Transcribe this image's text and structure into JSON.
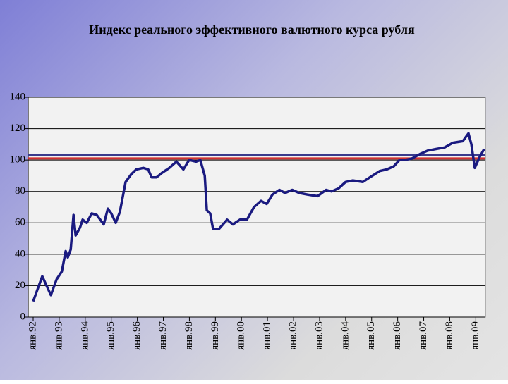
{
  "chart_data": {
    "type": "line",
    "title": "Индекс реального эффективного валютного курса рубля",
    "x": [
      1992.0,
      1992.35,
      1992.68,
      1992.9,
      1993.1,
      1993.25,
      1993.33,
      1993.44,
      1993.55,
      1993.63,
      1993.8,
      1993.9,
      1994.06,
      1994.25,
      1994.44,
      1994.71,
      1994.87,
      1995.0,
      1995.17,
      1995.33,
      1995.55,
      1995.77,
      1995.96,
      1996.23,
      1996.42,
      1996.55,
      1996.74,
      1996.96,
      1997.23,
      1997.5,
      1997.77,
      1997.99,
      1998.26,
      1998.42,
      1998.59,
      1998.67,
      1998.8,
      1998.91,
      1999.13,
      1999.45,
      1999.67,
      1999.94,
      2000.21,
      2000.48,
      2000.75,
      2000.97,
      2001.19,
      2001.46,
      2001.67,
      2001.95,
      2002.22,
      2002.54,
      2002.92,
      2003.25,
      2003.46,
      2003.73,
      2004.0,
      2004.28,
      2004.66,
      2004.93,
      2005.31,
      2005.58,
      2005.85,
      2006.07,
      2006.28,
      2006.55,
      2006.88,
      2007.15,
      2007.47,
      2007.8,
      2008.12,
      2008.5,
      2008.72,
      2008.83,
      2008.96,
      2009.15,
      2009.32
    ],
    "series": [
      {
        "color": "#1a1a80",
        "values": [
          10,
          26,
          14,
          24,
          29,
          42,
          38,
          43,
          65,
          52,
          57,
          62,
          60,
          66,
          65,
          59,
          69,
          66,
          60,
          67,
          86,
          91,
          94,
          95,
          94,
          89,
          89,
          92,
          95,
          99,
          94,
          100,
          99,
          100,
          90,
          68,
          66,
          56,
          56,
          62,
          59,
          62,
          62,
          70,
          74,
          72,
          78,
          81,
          79,
          81,
          79,
          78,
          77,
          81,
          80,
          82,
          86,
          87,
          86,
          89,
          93,
          94,
          96,
          100,
          100,
          101,
          104,
          106,
          107,
          108,
          111,
          112,
          117,
          110,
          95,
          102,
          107
        ]
      }
    ],
    "reference_lines": [
      {
        "value": 103,
        "color": "#3a3a8c"
      },
      {
        "value": 101,
        "color": "#d03030"
      }
    ],
    "xlim": [
      1991.81,
      2009.37
    ],
    "xticks": [
      {
        "value": 1992,
        "label": "янв.92"
      },
      {
        "value": 1993,
        "label": "янв.93"
      },
      {
        "value": 1994,
        "label": "янв.94"
      },
      {
        "value": 1995,
        "label": "янв.95"
      },
      {
        "value": 1996,
        "label": "янв.96"
      },
      {
        "value": 1997,
        "label": "янв.97"
      },
      {
        "value": 1998,
        "label": "янв.98"
      },
      {
        "value": 1999,
        "label": "янв.99"
      },
      {
        "value": 2000,
        "label": "янв.00"
      },
      {
        "value": 2001,
        "label": "янв.01"
      },
      {
        "value": 2002,
        "label": "янв.02"
      },
      {
        "value": 2003,
        "label": "янв.03"
      },
      {
        "value": 2004,
        "label": "янв.04"
      },
      {
        "value": 2005,
        "label": "янв.05"
      },
      {
        "value": 2006,
        "label": "янв.06"
      },
      {
        "value": 2007,
        "label": "янв.07"
      },
      {
        "value": 2008,
        "label": "янв.08"
      },
      {
        "value": 2009,
        "label": "янв.09"
      }
    ],
    "ylim": [
      0,
      140
    ],
    "yticks": [
      0,
      20,
      40,
      60,
      80,
      100,
      120,
      140
    ],
    "grid": true
  }
}
